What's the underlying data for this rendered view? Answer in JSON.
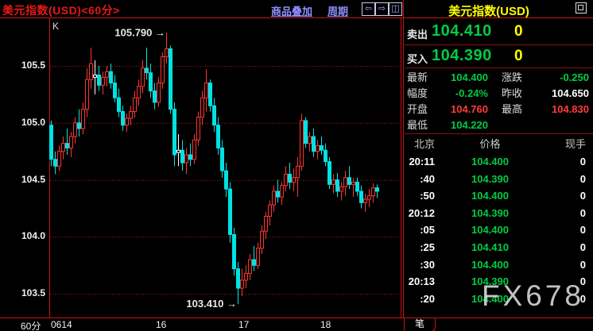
{
  "window": {
    "title": "美元指数(USD)<60分>"
  },
  "toolbar": {
    "overlay_link": "商品叠加",
    "period_link": "周期",
    "left_arrow": "⇦",
    "right_arrow": "⇨",
    "split_icon": "◫"
  },
  "chart": {
    "indicator_label": "K",
    "period_label": "60分",
    "x_axis_labels": [
      "0614",
      "16",
      "17",
      "18"
    ],
    "y_axis_labels": [
      "105.5",
      "105.0",
      "104.5",
      "104.0",
      "103.5"
    ],
    "high_annotation": "105.790 →",
    "low_annotation": "103.410 →"
  },
  "chart_data": {
    "type": "candlestick",
    "symbol": "美元指数(USD)",
    "interval": "60分",
    "x_tick_labels": [
      "0614",
      "16",
      "17",
      "18"
    ],
    "gridline_values": [
      105.5,
      105.0,
      104.5,
      104.0,
      103.5
    ],
    "y_range": [
      103.3,
      105.9
    ],
    "high_label_value": 105.79,
    "low_label_value": 103.41,
    "candles": [
      [
        104.98,
        105.02,
        104.62,
        104.68
      ],
      [
        104.68,
        104.75,
        104.55,
        104.62
      ],
      [
        104.62,
        104.8,
        104.58,
        104.75
      ],
      [
        104.75,
        104.88,
        104.68,
        104.82
      ],
      [
        104.82,
        104.95,
        104.72,
        104.78
      ],
      [
        104.78,
        104.92,
        104.7,
        104.88
      ],
      [
        104.88,
        105.05,
        104.82,
        105.0
      ],
      [
        105.0,
        105.12,
        104.88,
        104.95
      ],
      [
        104.95,
        105.18,
        104.9,
        105.12
      ],
      [
        105.12,
        105.48,
        105.05,
        105.38
      ],
      [
        105.38,
        105.66,
        105.3,
        105.52
      ],
      [
        105.42,
        105.55,
        105.25,
        105.4,
        "w"
      ],
      [
        105.42,
        105.5,
        105.28,
        105.33
      ],
      [
        105.33,
        105.45,
        105.25,
        105.4
      ],
      [
        105.4,
        105.5,
        105.32,
        105.45
      ],
      [
        105.45,
        105.52,
        105.3,
        105.35
      ],
      [
        105.35,
        105.42,
        105.18,
        105.22
      ],
      [
        105.22,
        105.3,
        105.05,
        105.1
      ],
      [
        105.1,
        105.15,
        104.93,
        104.98
      ],
      [
        104.98,
        105.08,
        104.92,
        105.04
      ],
      [
        105.04,
        105.15,
        104.98,
        105.1
      ],
      [
        105.1,
        105.28,
        105.05,
        105.22
      ],
      [
        105.22,
        105.38,
        105.15,
        105.32
      ],
      [
        105.32,
        105.55,
        105.26,
        105.48
      ],
      [
        105.48,
        105.66,
        105.38,
        105.44
      ],
      [
        105.44,
        105.52,
        105.22,
        105.28
      ],
      [
        105.28,
        105.35,
        105.12,
        105.18
      ],
      [
        105.18,
        105.4,
        105.14,
        105.35
      ],
      [
        105.35,
        105.62,
        105.3,
        105.58
      ],
      [
        105.58,
        105.79,
        105.52,
        105.65
      ],
      [
        105.65,
        105.68,
        105.08,
        105.12
      ],
      [
        105.12,
        105.18,
        104.62,
        104.72
      ],
      [
        104.74,
        104.9,
        104.62,
        104.76,
        "w"
      ],
      [
        104.76,
        104.85,
        104.58,
        104.65
      ],
      [
        104.65,
        104.78,
        104.55,
        104.72
      ],
      [
        104.72,
        104.82,
        104.62,
        104.68
      ],
      [
        104.68,
        104.9,
        104.64,
        104.85
      ],
      [
        104.85,
        105.1,
        104.8,
        105.05
      ],
      [
        105.05,
        105.28,
        104.98,
        105.22
      ],
      [
        105.22,
        105.47,
        105.1,
        105.35
      ],
      [
        105.35,
        105.38,
        105.1,
        105.15
      ],
      [
        105.15,
        105.22,
        104.92,
        104.98
      ],
      [
        104.98,
        105.05,
        104.72,
        104.78
      ],
      [
        104.78,
        104.85,
        104.52,
        104.58
      ],
      [
        104.58,
        104.65,
        104.35,
        104.42
      ],
      [
        104.42,
        104.48,
        103.95,
        104.02
      ],
      [
        104.02,
        104.08,
        103.66,
        103.72
      ],
      [
        103.72,
        103.78,
        103.41,
        103.55
      ],
      [
        103.55,
        103.72,
        103.48,
        103.62
      ],
      [
        103.62,
        103.75,
        103.55,
        103.68
      ],
      [
        103.68,
        103.85,
        103.62,
        103.8
      ],
      [
        103.8,
        103.92,
        103.7,
        103.75
      ],
      [
        103.75,
        103.95,
        103.72,
        103.9
      ],
      [
        103.9,
        104.1,
        103.85,
        104.05
      ],
      [
        104.05,
        104.22,
        103.98,
        104.18
      ],
      [
        104.18,
        104.32,
        104.1,
        104.28
      ],
      [
        104.28,
        104.45,
        104.22,
        104.4
      ],
      [
        104.4,
        104.5,
        104.3,
        104.35
      ],
      [
        104.35,
        104.48,
        104.28,
        104.45
      ],
      [
        104.45,
        104.62,
        104.4,
        104.55
      ],
      [
        104.55,
        104.65,
        104.42,
        104.48
      ],
      [
        104.48,
        104.6,
        104.4,
        104.52
      ],
      [
        104.52,
        104.7,
        104.35,
        104.62
      ],
      [
        104.62,
        105.08,
        104.58,
        105.02
      ],
      [
        105.02,
        105.05,
        104.78,
        104.82
      ],
      [
        104.82,
        104.92,
        104.75,
        104.88
      ],
      [
        104.88,
        104.95,
        104.7,
        104.75
      ],
      [
        104.75,
        104.85,
        104.68,
        104.8
      ],
      [
        104.8,
        104.88,
        104.72,
        104.76
      ],
      [
        104.76,
        104.82,
        104.62,
        104.66
      ],
      [
        104.66,
        104.7,
        104.42,
        104.46
      ],
      [
        104.46,
        104.55,
        104.38,
        104.5
      ],
      [
        104.5,
        104.56,
        104.35,
        104.4
      ],
      [
        104.4,
        104.48,
        104.32,
        104.44
      ],
      [
        104.44,
        104.58,
        104.36,
        104.52
      ],
      [
        104.52,
        104.62,
        104.42,
        104.46
      ],
      [
        104.46,
        104.52,
        104.35,
        104.48
      ],
      [
        104.48,
        104.52,
        104.36,
        104.4
      ],
      [
        104.4,
        104.45,
        104.25,
        104.3
      ],
      [
        104.3,
        104.38,
        104.22,
        104.33
      ],
      [
        104.33,
        104.42,
        104.26,
        104.36
      ],
      [
        104.36,
        104.47,
        104.3,
        104.43
      ],
      [
        104.43,
        104.46,
        104.34,
        104.4
      ]
    ]
  },
  "quote_panel": {
    "title": "美元指数(USD)",
    "sell_label": "卖出",
    "sell_price": "104.410",
    "sell_size": "0",
    "buy_label": "买入",
    "buy_price": "104.390",
    "buy_size": "0",
    "stats": [
      {
        "label": "最新",
        "value": "104.400",
        "color": "green",
        "label2": "涨跌",
        "value2": "-0.250",
        "color2": "green"
      },
      {
        "label": "幅度",
        "value": "-0.24%",
        "color": "green",
        "label2": "昨收",
        "value2": "104.650",
        "color2": "white"
      },
      {
        "label": "开盘",
        "value": "104.760",
        "color": "red",
        "label2": "最高",
        "value2": "104.830",
        "color2": "red"
      },
      {
        "label": "最低",
        "value": "104.220",
        "color": "green",
        "label2": "",
        "value2": "",
        "color2": "white"
      }
    ],
    "tick_table": {
      "headers": [
        "北京",
        "价格",
        "现手"
      ],
      "rows": [
        [
          "20:11",
          "104.400",
          "0"
        ],
        [
          ":40",
          "104.390",
          "0"
        ],
        [
          ":50",
          "104.400",
          "0"
        ],
        [
          "20:12",
          "104.390",
          "0"
        ],
        [
          ":05",
          "104.400",
          "0"
        ],
        [
          ":25",
          "104.410",
          "0"
        ],
        [
          ":30",
          "104.400",
          "0"
        ],
        [
          "20:13",
          "104.390",
          "0"
        ],
        [
          ":20",
          "104.400",
          "0"
        ]
      ]
    }
  },
  "footer": {
    "tab_label": "笔"
  },
  "watermark": "FX678",
  "colors": {
    "up_candle": "#ff3434",
    "down_candle": "#00e2e2",
    "doji_candle": "#ffffff",
    "green": "#00cc44",
    "red": "#ff3b3b",
    "yellow": "#ffff00",
    "white": "#ffffff",
    "grid": "#9b2222",
    "border": "#c81414",
    "link_blue": "#8f8fff",
    "title_red": "#e81818",
    "panel_title_yellow": "#ffff00"
  }
}
